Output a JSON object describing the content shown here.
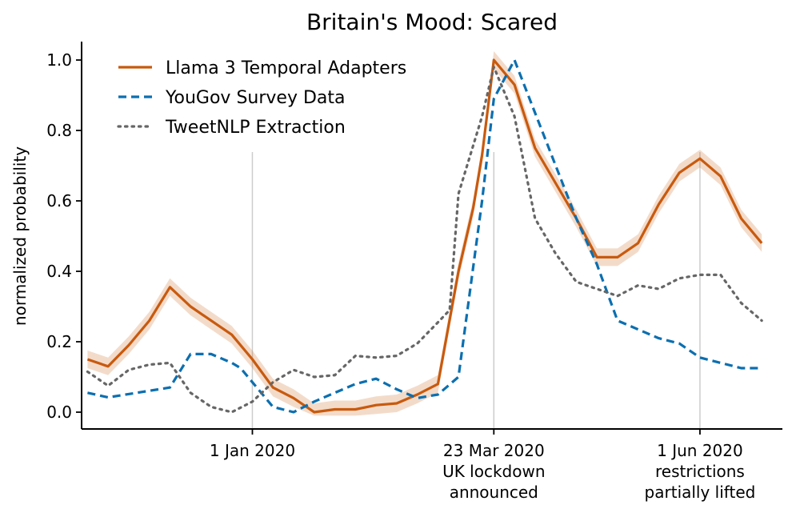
{
  "chart_data": {
    "type": "line",
    "title": "Britain's Mood: Scared",
    "xlabel": "",
    "ylabel": "normalized probability",
    "ylim": [
      0.0,
      1.05
    ],
    "xlim": [
      "2019-11-04",
      "2020-06-29"
    ],
    "grid": false,
    "legend_placement": "top-left",
    "yticks": [
      {
        "value": 0.0,
        "label": "0.0"
      },
      {
        "value": 0.2,
        "label": "0.2"
      },
      {
        "value": 0.4,
        "label": "0.4"
      },
      {
        "value": 0.6,
        "label": "0.6"
      },
      {
        "value": 0.8,
        "label": "0.8"
      },
      {
        "value": 1.0,
        "label": "1.0"
      }
    ],
    "xticks": [
      {
        "date": "2020-01-01",
        "lines": [
          "1 Jan 2020"
        ]
      },
      {
        "date": "2020-03-23",
        "lines": [
          "23 Mar 2020",
          "UK lockdown",
          "announced"
        ]
      },
      {
        "date": "2020-06-01",
        "lines": [
          "1 Jun 2020",
          "restrictions",
          "partially lifted"
        ]
      }
    ],
    "vlines": [
      "2020-01-01",
      "2020-03-23",
      "2020-06-01"
    ],
    "series": [
      {
        "name": "Llama 3 Temporal Adapters",
        "color": "#c85a0e",
        "style": "solid",
        "band": 0.025,
        "x": [
          "2019-11-06",
          "2019-11-13",
          "2019-11-20",
          "2019-11-27",
          "2019-12-04",
          "2019-12-11",
          "2019-12-18",
          "2019-12-25",
          "2020-01-01",
          "2020-01-08",
          "2020-01-15",
          "2020-01-22",
          "2020-01-29",
          "2020-02-05",
          "2020-02-12",
          "2020-02-19",
          "2020-02-26",
          "2020-03-04",
          "2020-03-11",
          "2020-03-16",
          "2020-03-19",
          "2020-03-23",
          "2020-03-30",
          "2020-04-06",
          "2020-04-13",
          "2020-04-20",
          "2020-04-27",
          "2020-05-04",
          "2020-05-11",
          "2020-05-18",
          "2020-05-25",
          "2020-06-01",
          "2020-06-08",
          "2020-06-15",
          "2020-06-22"
        ],
        "y": [
          0.15,
          0.13,
          0.19,
          0.26,
          0.355,
          0.3,
          0.26,
          0.22,
          0.15,
          0.07,
          0.04,
          0.0,
          0.008,
          0.008,
          0.02,
          0.025,
          0.05,
          0.08,
          0.4,
          0.58,
          0.73,
          1.0,
          0.93,
          0.75,
          0.65,
          0.55,
          0.44,
          0.44,
          0.48,
          0.59,
          0.68,
          0.72,
          0.67,
          0.55,
          0.48
        ]
      },
      {
        "name": "YouGov Survey Data",
        "color": "#0b6fb0",
        "style": "dashed",
        "x": [
          "2019-11-06",
          "2019-11-13",
          "2019-12-04",
          "2019-12-11",
          "2019-12-18",
          "2019-12-25",
          "2019-12-28",
          "2020-01-08",
          "2020-01-15",
          "2020-01-22",
          "2020-01-29",
          "2020-02-05",
          "2020-02-12",
          "2020-02-19",
          "2020-02-26",
          "2020-03-04",
          "2020-03-11",
          "2020-03-19",
          "2020-03-23",
          "2020-03-30",
          "2020-04-06",
          "2020-04-13",
          "2020-04-20",
          "2020-04-27",
          "2020-05-04",
          "2020-05-11",
          "2020-05-18",
          "2020-05-25",
          "2020-06-01",
          "2020-06-08",
          "2020-06-15",
          "2020-06-22"
        ],
        "y": [
          0.055,
          0.042,
          0.07,
          0.165,
          0.165,
          0.14,
          0.125,
          0.015,
          0.0,
          0.03,
          0.055,
          0.08,
          0.095,
          0.065,
          0.04,
          0.05,
          0.1,
          0.6,
          0.89,
          1.0,
          0.85,
          0.7,
          0.55,
          0.42,
          0.26,
          0.235,
          0.21,
          0.195,
          0.155,
          0.14,
          0.125,
          0.125
        ]
      },
      {
        "name": "TweetNLP Extraction",
        "color": "#666666",
        "style": "dotted",
        "x": [
          "2019-11-06",
          "2019-11-13",
          "2019-11-20",
          "2019-11-27",
          "2019-12-04",
          "2019-12-11",
          "2019-12-18",
          "2019-12-25",
          "2020-01-01",
          "2020-01-08",
          "2020-01-15",
          "2020-01-22",
          "2020-01-29",
          "2020-02-05",
          "2020-02-12",
          "2020-02-19",
          "2020-02-26",
          "2020-03-04",
          "2020-03-08",
          "2020-03-11",
          "2020-03-19",
          "2020-03-23",
          "2020-03-30",
          "2020-04-06",
          "2020-04-13",
          "2020-04-20",
          "2020-04-27",
          "2020-05-04",
          "2020-05-11",
          "2020-05-18",
          "2020-05-25",
          "2020-06-01",
          "2020-06-08",
          "2020-06-15",
          "2020-06-22"
        ],
        "y": [
          0.115,
          0.075,
          0.12,
          0.135,
          0.14,
          0.055,
          0.015,
          0.0,
          0.03,
          0.085,
          0.12,
          0.1,
          0.105,
          0.16,
          0.155,
          0.16,
          0.195,
          0.255,
          0.29,
          0.62,
          0.84,
          0.98,
          0.84,
          0.55,
          0.45,
          0.37,
          0.35,
          0.33,
          0.36,
          0.35,
          0.38,
          0.39,
          0.39,
          0.31,
          0.26
        ]
      }
    ]
  }
}
